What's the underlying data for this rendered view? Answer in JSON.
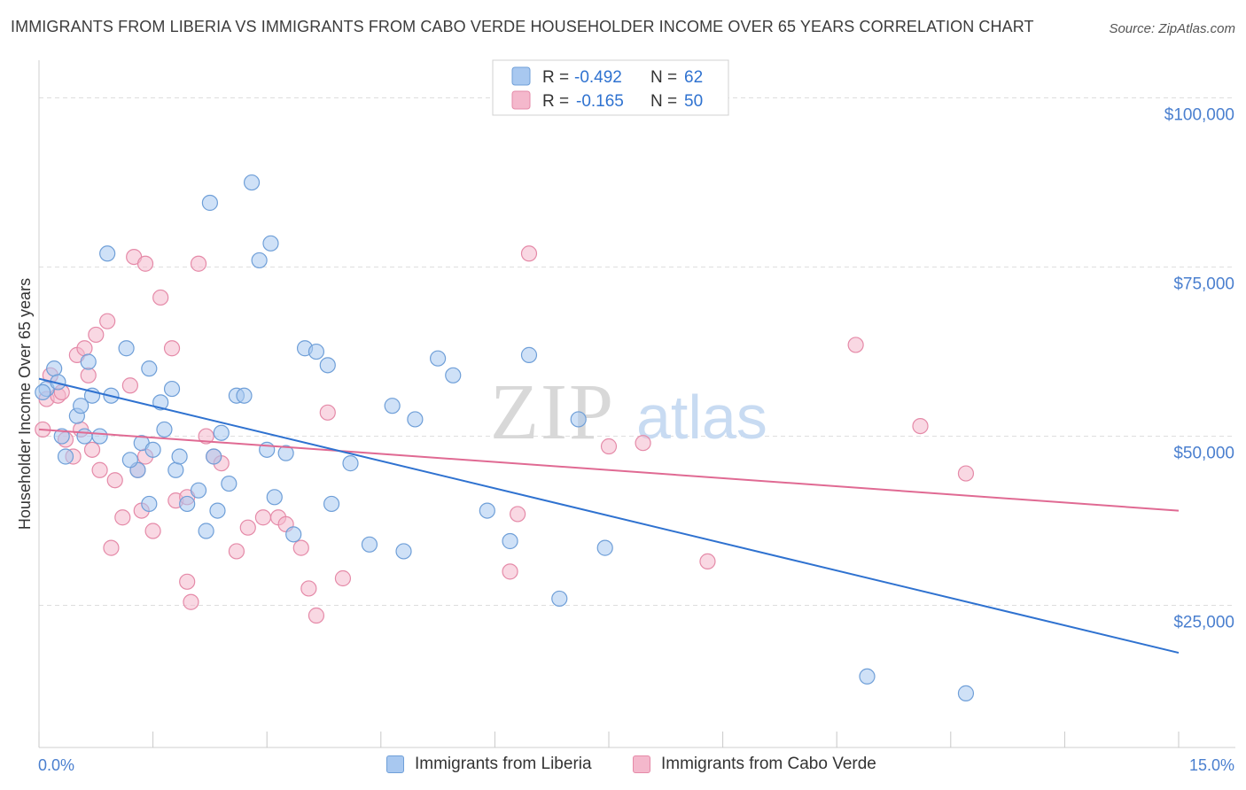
{
  "title": "IMMIGRANTS FROM LIBERIA VS IMMIGRANTS FROM CABO VERDE HOUSEHOLDER INCOME OVER 65 YEARS CORRELATION CHART",
  "source": "Source: ZipAtlas.com",
  "watermark": {
    "zip": "ZIP",
    "atlas": "atlas"
  },
  "legend_box": {
    "rows": [
      {
        "r_label": "R =",
        "r_value": "-0.492",
        "n_label": "N =",
        "n_value": "62",
        "color": "#a8c8f0"
      },
      {
        "r_label": "R =",
        "r_value": "-0.165",
        "n_label": "N =",
        "n_value": "50",
        "color": "#f4b8cc"
      }
    ]
  },
  "colors": {
    "blue_fill": "#a8c8f0",
    "blue_stroke": "#6f9fd8",
    "blue_line": "#2f72d0",
    "pink_fill": "#f4b8cc",
    "pink_stroke": "#e58aa8",
    "pink_line": "#e06a93",
    "axis_label_blue": "#4a7fcf",
    "grid": "#dedede"
  },
  "chart_data": {
    "type": "scatter",
    "title": "IMMIGRANTS FROM LIBERIA VS IMMIGRANTS FROM CABO VERDE HOUSEHOLDER INCOME OVER 65 YEARS CORRELATION CHART",
    "xlabel": "",
    "ylabel": "Householder Income Over 65 years",
    "xlim": [
      0,
      15
    ],
    "ylim": [
      4000,
      104000
    ],
    "x_tick_labels": [
      "0.0%",
      "15.0%"
    ],
    "y_ticks": [
      25000,
      50000,
      75000,
      100000
    ],
    "y_tick_labels": [
      "$25,000",
      "$50,000",
      "$75,000",
      "$100,000"
    ],
    "grid": true,
    "legend_position": "bottom",
    "series": [
      {
        "name": "Immigrants from Liberia",
        "r": -0.492,
        "n": 62,
        "trend": {
          "x": [
            0,
            15
          ],
          "y": [
            58500,
            18000
          ]
        },
        "points": [
          [
            0.1,
            57000
          ],
          [
            0.2,
            60000
          ],
          [
            0.25,
            58000
          ],
          [
            0.35,
            47000
          ],
          [
            0.5,
            53000
          ],
          [
            0.55,
            54500
          ],
          [
            0.65,
            61000
          ],
          [
            0.7,
            56000
          ],
          [
            0.8,
            50000
          ],
          [
            0.9,
            77000
          ],
          [
            0.95,
            56000
          ],
          [
            1.15,
            63000
          ],
          [
            1.3,
            45000
          ],
          [
            1.35,
            49000
          ],
          [
            1.45,
            40000
          ],
          [
            1.45,
            60000
          ],
          [
            1.5,
            48000
          ],
          [
            1.6,
            55000
          ],
          [
            1.65,
            51000
          ],
          [
            1.75,
            57000
          ],
          [
            1.8,
            45000
          ],
          [
            1.85,
            47000
          ],
          [
            1.95,
            40000
          ],
          [
            2.1,
            42000
          ],
          [
            2.2,
            36000
          ],
          [
            2.25,
            84500
          ],
          [
            2.3,
            47000
          ],
          [
            2.35,
            39000
          ],
          [
            2.4,
            50500
          ],
          [
            2.5,
            43000
          ],
          [
            2.6,
            56000
          ],
          [
            2.7,
            56000
          ],
          [
            2.8,
            87500
          ],
          [
            2.9,
            76000
          ],
          [
            3.05,
            78500
          ],
          [
            3.1,
            41000
          ],
          [
            3.25,
            47500
          ],
          [
            3.35,
            35500
          ],
          [
            3.5,
            63000
          ],
          [
            3.65,
            62500
          ],
          [
            3.8,
            60500
          ],
          [
            3.85,
            40000
          ],
          [
            4.1,
            46000
          ],
          [
            4.35,
            34000
          ],
          [
            4.65,
            54500
          ],
          [
            4.8,
            33000
          ],
          [
            4.95,
            52500
          ],
          [
            5.25,
            61500
          ],
          [
            5.45,
            59000
          ],
          [
            5.9,
            39000
          ],
          [
            6.2,
            34500
          ],
          [
            6.45,
            62000
          ],
          [
            6.85,
            26000
          ],
          [
            7.1,
            52500
          ],
          [
            7.45,
            33500
          ],
          [
            10.9,
            14500
          ],
          [
            12.2,
            12000
          ],
          [
            0.05,
            56500
          ],
          [
            0.3,
            50000
          ],
          [
            0.6,
            50000
          ],
          [
            1.2,
            46500
          ],
          [
            3.0,
            48000
          ]
        ]
      },
      {
        "name": "Immigrants from Cabo Verde",
        "r": -0.165,
        "n": 50,
        "trend": {
          "x": [
            0,
            15
          ],
          "y": [
            51000,
            39000
          ]
        },
        "points": [
          [
            0.05,
            51000
          ],
          [
            0.1,
            55500
          ],
          [
            0.15,
            59000
          ],
          [
            0.25,
            56000
          ],
          [
            0.3,
            56500
          ],
          [
            0.35,
            49500
          ],
          [
            0.45,
            47000
          ],
          [
            0.5,
            62000
          ],
          [
            0.55,
            51000
          ],
          [
            0.6,
            63000
          ],
          [
            0.65,
            59000
          ],
          [
            0.7,
            48000
          ],
          [
            0.75,
            65000
          ],
          [
            0.8,
            45000
          ],
          [
            0.9,
            67000
          ],
          [
            0.95,
            33500
          ],
          [
            1.0,
            43500
          ],
          [
            1.1,
            38000
          ],
          [
            1.2,
            57500
          ],
          [
            1.25,
            76500
          ],
          [
            1.3,
            45000
          ],
          [
            1.4,
            47000
          ],
          [
            1.4,
            75500
          ],
          [
            1.5,
            36000
          ],
          [
            1.6,
            70500
          ],
          [
            1.75,
            63000
          ],
          [
            1.8,
            40500
          ],
          [
            1.95,
            41000
          ],
          [
            1.95,
            28500
          ],
          [
            2.0,
            25500
          ],
          [
            2.1,
            75500
          ],
          [
            2.2,
            50000
          ],
          [
            2.3,
            47000
          ],
          [
            2.4,
            46000
          ],
          [
            2.6,
            33000
          ],
          [
            2.75,
            36500
          ],
          [
            2.95,
            38000
          ],
          [
            3.15,
            38000
          ],
          [
            3.25,
            37000
          ],
          [
            3.45,
            33500
          ],
          [
            3.55,
            27500
          ],
          [
            3.65,
            23500
          ],
          [
            3.8,
            53500
          ],
          [
            4.0,
            29000
          ],
          [
            6.2,
            30000
          ],
          [
            6.3,
            38500
          ],
          [
            6.45,
            77000
          ],
          [
            7.5,
            48500
          ],
          [
            8.8,
            31500
          ],
          [
            10.75,
            63500
          ]
        ]
      }
    ],
    "extra_points_pink": [
      [
        11.6,
        51500
      ],
      [
        12.2,
        44500
      ],
      [
        7.95,
        49000
      ],
      [
        1.35,
        39000
      ]
    ]
  }
}
